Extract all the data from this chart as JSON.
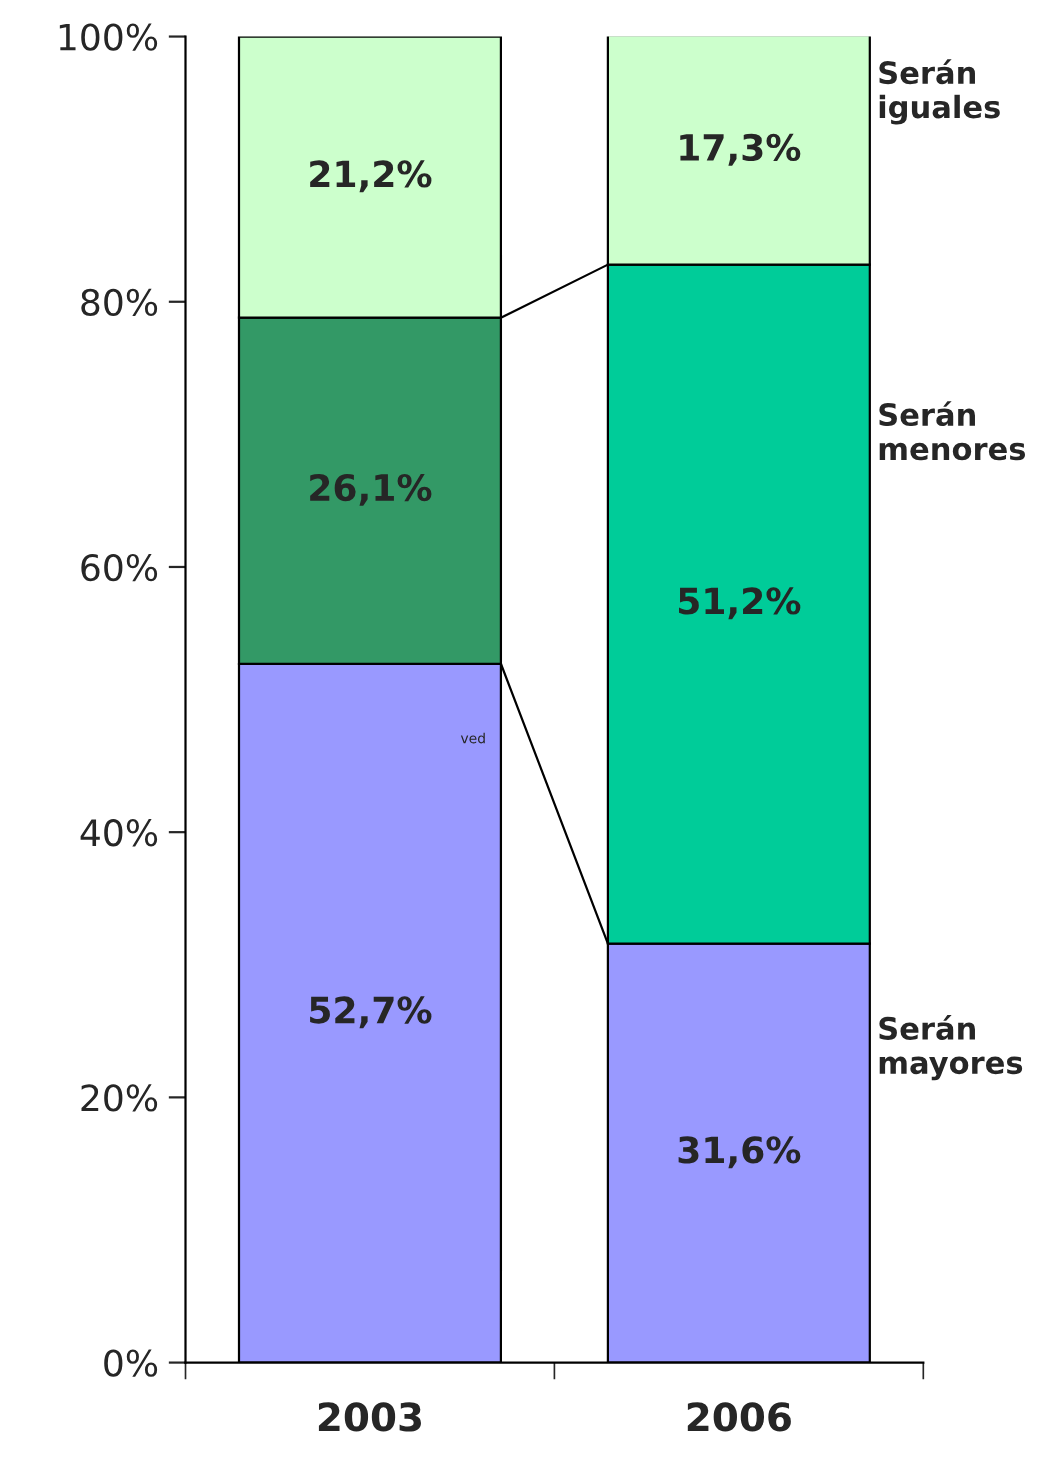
{
  "chart_data": {
    "type": "bar",
    "stacked": true,
    "categories": [
      "2003",
      "2006"
    ],
    "series": [
      {
        "name": "Serán mayores",
        "color": "#9999ff",
        "values": [
          52.7,
          31.6
        ],
        "value_labels": [
          "52,7%",
          "31,6%"
        ]
      },
      {
        "name": "Serán menores",
        "colors": [
          "#339966",
          "#00cc99"
        ],
        "values": [
          26.1,
          51.2
        ],
        "value_labels": [
          "26,1%",
          "51,2%"
        ]
      },
      {
        "name": "Serán iguales",
        "color": "#ccffcc",
        "values": [
          21.2,
          17.3
        ],
        "value_labels": [
          "21,2%",
          "17,3%"
        ]
      }
    ],
    "ylim": [
      0,
      100
    ],
    "yticks": [
      {
        "value": 0,
        "label": "0%"
      },
      {
        "value": 20,
        "label": "20%"
      },
      {
        "value": 40,
        "label": "40%"
      },
      {
        "value": 60,
        "label": "60%"
      },
      {
        "value": 80,
        "label": "80%"
      },
      {
        "value": 100,
        "label": "100%"
      }
    ],
    "annotations": [
      "ved"
    ],
    "grid": false,
    "legend": false
  }
}
